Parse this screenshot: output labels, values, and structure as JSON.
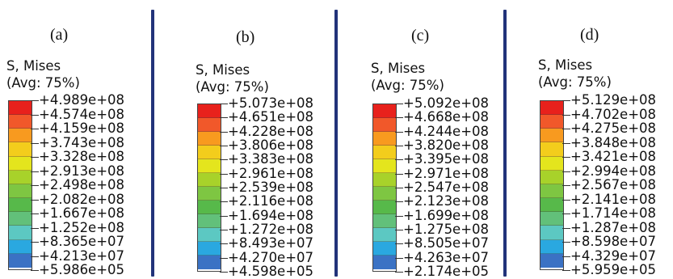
{
  "panels": [
    {
      "label": "(a)",
      "title_line1": "S, Mises",
      "title_line2": "(Avg: 75%)",
      "values": [
        "+4.989e+08",
        "+4.574e+08",
        "+4.159e+08",
        "+3.743e+08",
        "+3.328e+08",
        "+2.913e+08",
        "+2.498e+08",
        "+2.082e+08",
        "+1.667e+08",
        "+1.252e+08",
        "+8.365e+07",
        "+4.213e+07",
        "+5.986e+05"
      ]
    },
    {
      "label": "(b)",
      "title_line1": "S, Mises",
      "title_line2": "(Avg: 75%)",
      "values": [
        "+5.073e+08",
        "+4.651e+08",
        "+4.228e+08",
        "+3.806e+08",
        "+3.383e+08",
        "+2.961e+08",
        "+2.539e+08",
        "+2.116e+08",
        "+1.694e+08",
        "+1.272e+08",
        "+8.493e+07",
        "+4.270e+07",
        "+4.598e+05"
      ]
    },
    {
      "label": "(c)",
      "title_line1": "S, Mises",
      "title_line2": "(Avg: 75%)",
      "values": [
        "+5.092e+08",
        "+4.668e+08",
        "+4.244e+08",
        "+3.820e+08",
        "+3.395e+08",
        "+2.971e+08",
        "+2.547e+08",
        "+2.123e+08",
        "+1.699e+08",
        "+1.275e+08",
        "+8.505e+07",
        "+4.263e+07",
        "+2.174e+05"
      ]
    },
    {
      "label": "(d)",
      "title_line1": "S, Mises",
      "title_line2": "(Avg: 75%)",
      "values": [
        "+5.129e+08",
        "+4.702e+08",
        "+4.275e+08",
        "+3.848e+08",
        "+3.421e+08",
        "+2.994e+08",
        "+2.567e+08",
        "+2.141e+08",
        "+1.714e+08",
        "+1.287e+08",
        "+8.598e+07",
        "+4.329e+07",
        "+5.959e+05"
      ]
    }
  ],
  "colormap": [
    "#e8211c",
    "#f1582a",
    "#f89a1f",
    "#f3cd1c",
    "#e4e51d",
    "#a8d22a",
    "#7ec642",
    "#57b94a",
    "#62c07a",
    "#5cc8c2",
    "#2aa8e0",
    "#3b72c4",
    "#2a4aa6"
  ]
}
